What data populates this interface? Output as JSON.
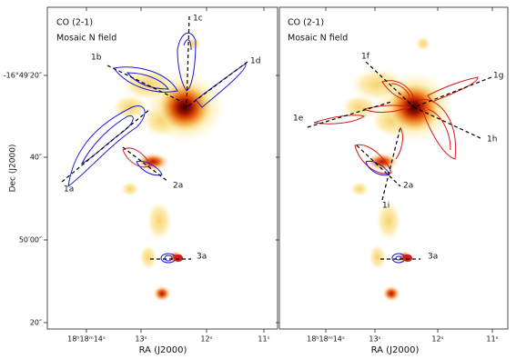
{
  "y_axis_label": "Dec (J2000)",
  "panels": [
    {
      "title": "CO (2-1)",
      "subtitle": "Mosaic N field",
      "x_axis_label": "RA (J2000)",
      "x_ticks": [
        "18ʰ18ᵐ14ˢ",
        "13ˢ",
        "12ˢ",
        "11ˢ"
      ],
      "y_ticks": [
        "-16°49′20″",
        "40″",
        "50′00″",
        "20″"
      ],
      "labels": [
        "1c",
        "1b",
        "1d",
        "1a",
        "2a",
        "3a"
      ]
    },
    {
      "title": "CO (2-1)",
      "subtitle": "Mosaic N field",
      "x_axis_label": "RA (J2000)",
      "x_ticks": [
        "18ʰ18ᵐ14ˢ",
        "13ˢ",
        "12ˢ",
        "11ˢ"
      ],
      "labels": [
        "1f",
        "1g",
        "1e",
        "1h",
        "2a",
        "1i",
        "3a"
      ]
    }
  ]
}
